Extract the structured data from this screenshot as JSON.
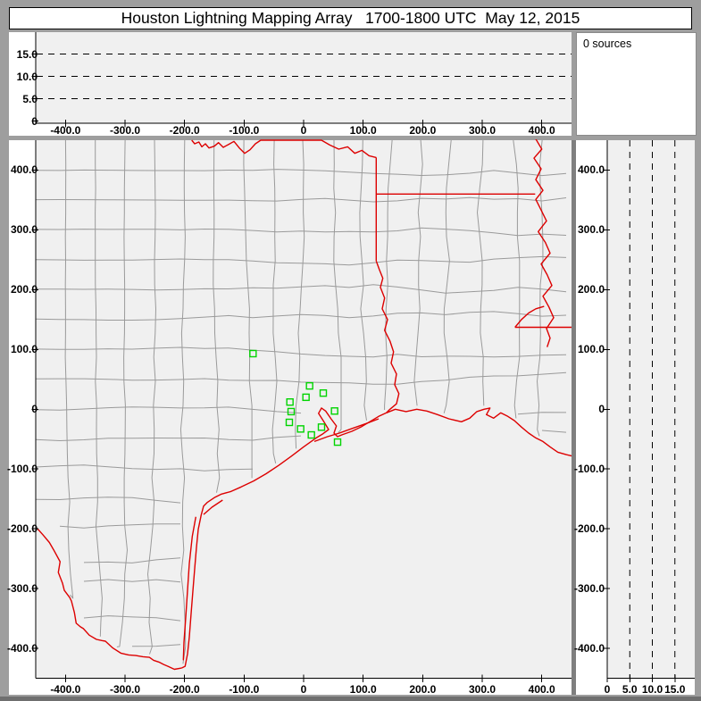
{
  "title": "Houston Lightning Mapping Array   1700-1800 UTC  May 12, 2015",
  "sources_panel": {
    "label": "0 sources"
  },
  "colors": {
    "window_bg": "#9e9e9e",
    "panel_bg": "#ffffff",
    "plot_bg": "#f0f0f0",
    "axis": "#000000",
    "tick_text": "#000000",
    "county_line": "#9a9a9a",
    "state_border": "#dd0000",
    "station_marker": "#00d400",
    "separator": "#7f7f7f",
    "edge_shade": "#6f6f6f",
    "sources_border": "#8a8a8a"
  },
  "chart_data": [
    {
      "id": "alt-vs-east-west",
      "type": "scatter",
      "description": "Altitude (km) vs east-west distance (km), no VHF sources plotted",
      "xlim": [
        -450,
        450
      ],
      "ylim": [
        0,
        20
      ],
      "x_tick_values": [
        -400,
        -300,
        -200,
        -100,
        0,
        100,
        200,
        300,
        400
      ],
      "x_tick_labels": [
        "-400.0",
        "-300.0",
        "-200.0",
        "-100.0",
        "0",
        "100.0",
        "200.0",
        "300.0",
        "400.0"
      ],
      "y_tick_values": [
        0,
        5,
        10,
        15
      ],
      "y_tick_labels": [
        "0",
        "5.0",
        "10.0",
        "15.0"
      ],
      "dashed_gridlines_y": [
        5,
        10,
        15
      ],
      "points": []
    },
    {
      "id": "plan-view",
      "type": "scatter",
      "description": "Plan view map, county and state boundaries, LMA station locations",
      "xlim": [
        -450,
        450
      ],
      "ylim": [
        -450,
        450
      ],
      "x_tick_values": [
        -400,
        -300,
        -200,
        -100,
        0,
        100,
        200,
        300,
        400
      ],
      "x_tick_labels": [
        "-400.0",
        "-300.0",
        "-200.0",
        "-100.0",
        "0",
        "100.0",
        "200.0",
        "300.0",
        "400.0"
      ],
      "y_tick_values": [
        400,
        300,
        200,
        100,
        0,
        -100,
        -200,
        -300,
        -400
      ],
      "y_tick_labels": [
        "400.0",
        "300.0",
        "200.0",
        "100.0",
        "0",
        "-100.0",
        "-200.0",
        "-300.0",
        "-400.0"
      ],
      "points": [],
      "stations_km": [
        [
          -85,
          93
        ],
        [
          10,
          39
        ],
        [
          4,
          20
        ],
        [
          -23,
          12
        ],
        [
          33,
          27
        ],
        [
          -21,
          -4
        ],
        [
          -24,
          -22
        ],
        [
          -5,
          -33
        ],
        [
          30,
          -30
        ],
        [
          13,
          -43
        ],
        [
          52,
          -3
        ],
        [
          57,
          -55
        ]
      ],
      "map_features_km": {
        "red_river": [
          [
            -188,
            450
          ],
          [
            -183,
            444
          ],
          [
            -176,
            447
          ],
          [
            -171,
            439
          ],
          [
            -165,
            444
          ],
          [
            -159,
            437
          ],
          [
            -150,
            440
          ],
          [
            -143,
            446
          ],
          [
            -135,
            438
          ],
          [
            -126,
            443
          ],
          [
            -117,
            448
          ],
          [
            -108,
            437
          ],
          [
            -99,
            428
          ],
          [
            -90,
            434
          ],
          [
            -81,
            444
          ],
          [
            -72,
            450
          ],
          [
            30,
            450
          ],
          [
            44,
            442
          ],
          [
            59,
            435
          ],
          [
            74,
            439
          ],
          [
            86,
            428
          ],
          [
            98,
            433
          ],
          [
            110,
            424
          ],
          [
            122,
            421
          ]
        ],
        "ok_border": [
          [
            122,
            421
          ],
          [
            122,
            248
          ]
        ],
        "ok_ar_line": [
          [
            122,
            360
          ],
          [
            389,
            360
          ]
        ],
        "mississippi_river": [
          [
            390,
            452
          ],
          [
            400,
            435
          ],
          [
            387,
            420
          ],
          [
            399,
            402
          ],
          [
            390,
            384
          ],
          [
            402,
            366
          ],
          [
            390,
            351
          ],
          [
            399,
            333
          ],
          [
            408,
            315
          ],
          [
            394,
            297
          ],
          [
            406,
            279
          ],
          [
            414,
            261
          ],
          [
            399,
            243
          ],
          [
            409,
            225
          ],
          [
            417,
            207
          ],
          [
            402,
            189
          ],
          [
            412,
            171
          ],
          [
            420,
            153
          ],
          [
            408,
            135
          ],
          [
            414,
            119
          ],
          [
            409,
            104
          ]
        ],
        "la_ms_line": [
          [
            355,
            137
          ],
          [
            471,
            137
          ]
        ],
        "river_connector": [
          [
            355,
            137
          ],
          [
            366,
            150
          ],
          [
            378,
            161
          ],
          [
            390,
            168
          ],
          [
            404,
            172
          ]
        ],
        "tx_la_border": [
          [
            122,
            248
          ],
          [
            127,
            234
          ],
          [
            133,
            219
          ],
          [
            129,
            204
          ],
          [
            136,
            186
          ],
          [
            132,
            168
          ],
          [
            141,
            150
          ],
          [
            136,
            132
          ],
          [
            145,
            114
          ],
          [
            151,
            96
          ],
          [
            147,
            77
          ],
          [
            156,
            59
          ],
          [
            153,
            41
          ],
          [
            160,
            26
          ],
          [
            156,
            9
          ],
          [
            145,
            0
          ],
          [
            139,
            -6
          ]
        ],
        "la_coast": [
          [
            139,
            -6
          ],
          [
            154,
            0
          ],
          [
            172,
            -4
          ],
          [
            190,
            0
          ],
          [
            207,
            -3
          ],
          [
            225,
            -9
          ],
          [
            244,
            -16
          ],
          [
            265,
            -21
          ],
          [
            279,
            -15
          ],
          [
            291,
            -4
          ],
          [
            303,
            0
          ],
          [
            313,
            2
          ],
          [
            307,
            -9
          ],
          [
            319,
            -15
          ],
          [
            331,
            -6
          ],
          [
            343,
            -12
          ],
          [
            354,
            -19
          ],
          [
            366,
            -30
          ],
          [
            378,
            -40
          ],
          [
            390,
            -48
          ],
          [
            402,
            -54
          ],
          [
            414,
            -63
          ],
          [
            427,
            -72
          ],
          [
            441,
            -76
          ],
          [
            454,
            -79
          ],
          [
            471,
            -82
          ]
        ],
        "tx_coast": [
          [
            139,
            -6
          ],
          [
            126,
            -12
          ],
          [
            111,
            -21
          ],
          [
            96,
            -30
          ],
          [
            81,
            -37
          ],
          [
            64,
            -43
          ],
          [
            57,
            -46
          ],
          [
            51,
            -40
          ],
          [
            55,
            -28
          ],
          [
            46,
            -16
          ],
          [
            37,
            -3
          ],
          [
            30,
            2
          ],
          [
            25,
            -7
          ],
          [
            34,
            -21
          ],
          [
            42,
            -34
          ],
          [
            31,
            -42
          ],
          [
            21,
            -48
          ],
          [
            0,
            -63
          ],
          [
            -21,
            -79
          ],
          [
            -42,
            -94
          ],
          [
            -63,
            -108
          ],
          [
            -84,
            -120
          ],
          [
            -105,
            -130
          ],
          [
            -123,
            -138
          ],
          [
            -138,
            -142
          ],
          [
            -150,
            -148
          ],
          [
            -162,
            -156
          ],
          [
            -168,
            -162
          ],
          [
            -172,
            -177
          ],
          [
            -177,
            -201
          ],
          [
            -180,
            -231
          ],
          [
            -183,
            -267
          ],
          [
            -186,
            -304
          ],
          [
            -189,
            -342
          ],
          [
            -192,
            -381
          ],
          [
            -195,
            -409
          ],
          [
            -199,
            -430
          ],
          [
            -205,
            -433
          ]
        ],
        "laguna_madre_inner": [
          [
            -181,
            -180
          ],
          [
            -187,
            -213
          ],
          [
            -192,
            -258
          ],
          [
            -195,
            -303
          ],
          [
            -198,
            -348
          ],
          [
            -201,
            -390
          ],
          [
            -202,
            -420
          ]
        ],
        "galveston_barrier": [
          [
            18,
            -54
          ],
          [
            40,
            -46
          ],
          [
            60,
            -40
          ],
          [
            82,
            -32
          ],
          [
            105,
            -24
          ],
          [
            126,
            -16
          ]
        ],
        "matagorda_barrier": [
          [
            -136,
            -152
          ],
          [
            -154,
            -164
          ],
          [
            -168,
            -176
          ]
        ],
        "rio_grande": [
          [
            -447,
            -200
          ],
          [
            -438,
            -210
          ],
          [
            -427,
            -223
          ],
          [
            -420,
            -235
          ],
          [
            -409,
            -255
          ],
          [
            -412,
            -273
          ],
          [
            -405,
            -291
          ],
          [
            -402,
            -303
          ],
          [
            -393,
            -315
          ],
          [
            -390,
            -321
          ],
          [
            -385,
            -340
          ],
          [
            -382,
            -358
          ],
          [
            -375,
            -364
          ],
          [
            -370,
            -367
          ],
          [
            -360,
            -378
          ],
          [
            -348,
            -385
          ],
          [
            -339,
            -387
          ],
          [
            -333,
            -388
          ],
          [
            -321,
            -399
          ],
          [
            -307,
            -408
          ],
          [
            -294,
            -411
          ],
          [
            -282,
            -412
          ],
          [
            -270,
            -414
          ],
          [
            -259,
            -415
          ],
          [
            -252,
            -420
          ],
          [
            -243,
            -423
          ],
          [
            -235,
            -427
          ],
          [
            -228,
            -430
          ],
          [
            -217,
            -435
          ],
          [
            -205,
            -433
          ]
        ]
      }
    },
    {
      "id": "alt-vs-north-south",
      "type": "scatter",
      "description": "North-south distance (km) vs altitude (km), no VHF sources plotted",
      "xlim": [
        0,
        20
      ],
      "ylim": [
        -450,
        450
      ],
      "x_tick_values": [
        0,
        5,
        10,
        15
      ],
      "x_tick_labels": [
        "0",
        "5.0",
        "10.0",
        "15.0"
      ],
      "y_tick_values": [
        400,
        300,
        200,
        100,
        0,
        -100,
        -200,
        -300,
        -400
      ],
      "y_tick_labels": [
        "400.0",
        "300.0",
        "200.0",
        "100.0",
        "0",
        "-100.0",
        "-200.0",
        "-300.0",
        "-400.0"
      ],
      "dashed_gridlines_x": [
        5,
        10,
        15
      ],
      "points": []
    }
  ]
}
